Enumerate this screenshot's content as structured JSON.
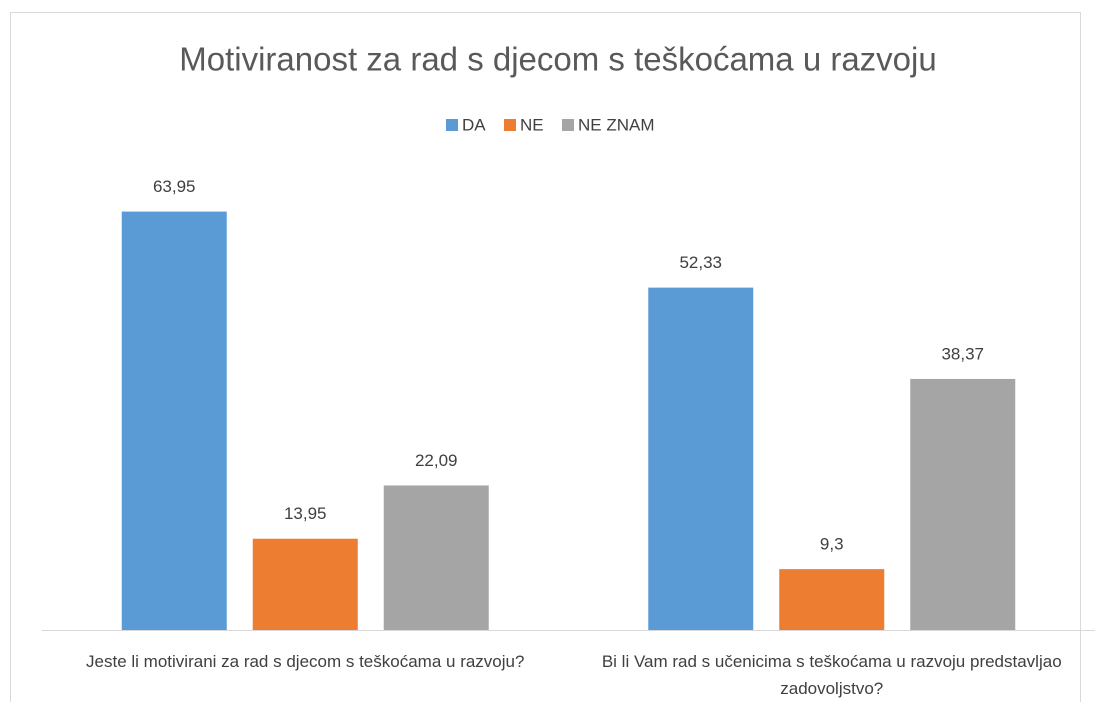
{
  "chart_data": {
    "type": "bar",
    "title": "Motiviranost za rad s djecom s teškoćama u razvoju",
    "categories": [
      "Jeste li motivirani za rad s djecom s teškoćama u razvoju?",
      "Bi li Vam rad s učenicima s teškoćama u razvoju predstavljao zadovoljstvo?"
    ],
    "series": [
      {
        "name": "DA",
        "color": "#5b9bd5",
        "values": [
          63.95,
          52.33
        ],
        "value_labels": [
          "63,95",
          "52,33"
        ]
      },
      {
        "name": "NE",
        "color": "#ed7d31",
        "values": [
          13.95,
          9.3
        ],
        "value_labels": [
          "13,95",
          "9,3"
        ]
      },
      {
        "name": "NE ZNAM",
        "color": "#a5a5a5",
        "values": [
          22.09,
          38.37
        ],
        "value_labels": [
          "22,09",
          "38,37"
        ]
      }
    ],
    "ylim": [
      0,
      70
    ],
    "legend": "top"
  }
}
